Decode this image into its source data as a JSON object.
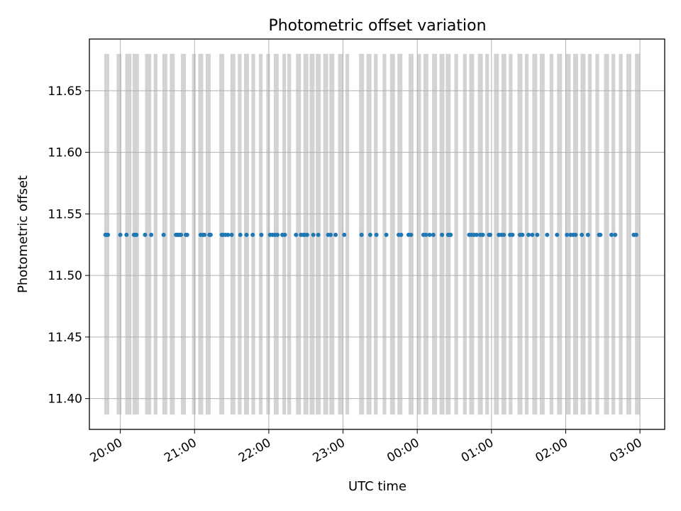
{
  "chart_data": {
    "type": "scatter",
    "title": "Photometric offset variation",
    "xlabel": "UTC time",
    "ylabel": "Photometric offset",
    "x_axis": {
      "type": "time",
      "start": "19:35",
      "end": "27:20",
      "ticks": [
        {
          "value": "20:00",
          "label": "20:00"
        },
        {
          "value": "21:00",
          "label": "21:00"
        },
        {
          "value": "22:00",
          "label": "22:00"
        },
        {
          "value": "23:00",
          "label": "23:00"
        },
        {
          "value": "24:00",
          "label": "00:00"
        },
        {
          "value": "25:00",
          "label": "01:00"
        },
        {
          "value": "26:00",
          "label": "02:00"
        },
        {
          "value": "27:00",
          "label": "03:00"
        }
      ]
    },
    "y_axis": {
      "range": [
        11.375,
        11.692
      ],
      "ticks": [
        "11.40",
        "11.45",
        "11.50",
        "11.55",
        "11.60",
        "11.65"
      ]
    },
    "grid": true,
    "band_range": [
      11.387,
      11.68
    ],
    "band_color": "#d3d3d3",
    "point_color": "#1f77b4",
    "point_value": 11.533,
    "bands": [
      [
        "19:47",
        "19:51"
      ],
      [
        "19:57",
        "20:01"
      ],
      [
        "20:04",
        "20:09"
      ],
      [
        "20:10",
        "20:15"
      ],
      [
        "20:20",
        "20:25"
      ],
      [
        "20:27",
        "20:30"
      ],
      [
        "20:34",
        "20:38"
      ],
      [
        "20:40",
        "20:44"
      ],
      [
        "20:49",
        "20:53"
      ],
      [
        "20:58",
        "21:01"
      ],
      [
        "21:03",
        "21:07"
      ],
      [
        "21:09",
        "21:13"
      ],
      [
        "21:20",
        "21:24"
      ],
      [
        "21:29",
        "21:33"
      ],
      [
        "21:35",
        "21:38"
      ],
      [
        "21:40",
        "21:44"
      ],
      [
        "21:46",
        "21:49"
      ],
      [
        "21:52",
        "21:55"
      ],
      [
        "21:58",
        "22:01"
      ],
      [
        "22:04",
        "22:08"
      ],
      [
        "22:11",
        "22:14"
      ],
      [
        "22:15",
        "22:18"
      ],
      [
        "22:22",
        "22:26"
      ],
      [
        "22:28",
        "22:32"
      ],
      [
        "22:33",
        "22:37"
      ],
      [
        "22:38",
        "22:42"
      ],
      [
        "22:44",
        "22:48"
      ],
      [
        "22:49",
        "22:53"
      ],
      [
        "22:56",
        "23:00"
      ],
      [
        "23:02",
        "23:05"
      ],
      [
        "23:13",
        "23:17"
      ],
      [
        "23:19",
        "23:23"
      ],
      [
        "23:25",
        "23:28"
      ],
      [
        "23:32",
        "23:35"
      ],
      [
        "23:38",
        "23:42"
      ],
      [
        "23:44",
        "23:48"
      ],
      [
        "23:53",
        "23:57"
      ],
      [
        "24:00",
        "24:03"
      ],
      [
        "24:05",
        "24:09"
      ],
      [
        "24:12",
        "24:16"
      ],
      [
        "24:18",
        "24:22"
      ],
      [
        "24:23",
        "24:27"
      ],
      [
        "24:30",
        "24:33"
      ],
      [
        "24:37",
        "24:40"
      ],
      [
        "24:42",
        "24:46"
      ],
      [
        "24:49",
        "24:53"
      ],
      [
        "24:55",
        "24:58"
      ],
      [
        "25:02",
        "25:06"
      ],
      [
        "25:08",
        "25:12"
      ],
      [
        "25:14",
        "25:17"
      ],
      [
        "25:21",
        "25:25"
      ],
      [
        "25:27",
        "25:30"
      ],
      [
        "25:33",
        "25:37"
      ],
      [
        "25:39",
        "25:43"
      ],
      [
        "25:47",
        "25:50"
      ],
      [
        "25:53",
        "25:57"
      ],
      [
        "26:00",
        "26:04"
      ],
      [
        "26:06",
        "26:10"
      ],
      [
        "26:12",
        "26:16"
      ],
      [
        "26:18",
        "26:21"
      ],
      [
        "26:24",
        "26:27"
      ],
      [
        "26:31",
        "26:35"
      ],
      [
        "26:37",
        "26:40"
      ],
      [
        "26:43",
        "26:46"
      ],
      [
        "26:49",
        "26:53"
      ],
      [
        "26:56",
        "27:00"
      ]
    ],
    "x": [
      "19:48",
      "19:49",
      "19:50",
      "20:00",
      "20:05",
      "20:11",
      "20:12",
      "20:13",
      "20:20",
      "20:25",
      "20:35",
      "20:45",
      "20:46",
      "20:47",
      "20:48",
      "20:49",
      "20:53",
      "20:54",
      "21:05",
      "21:07",
      "21:08",
      "21:12",
      "21:13",
      "21:22",
      "21:23",
      "21:25",
      "21:27",
      "21:30",
      "21:37",
      "21:42",
      "21:47",
      "21:54",
      "22:01",
      "22:03",
      "22:05",
      "22:07",
      "22:11",
      "22:13",
      "22:22",
      "22:26",
      "22:28",
      "22:29",
      "22:31",
      "22:36",
      "22:40",
      "22:48",
      "22:50",
      "22:54",
      "23:01",
      "23:15",
      "23:22",
      "23:27",
      "23:35",
      "23:45",
      "23:47",
      "23:53",
      "23:55",
      "24:05",
      "24:07",
      "24:10",
      "24:13",
      "24:20",
      "24:25",
      "24:26",
      "24:27",
      "24:42",
      "24:44",
      "24:46",
      "24:48",
      "24:51",
      "24:53",
      "24:58",
      "24:59",
      "25:06",
      "25:08",
      "25:10",
      "25:15",
      "25:17",
      "25:23",
      "25:25",
      "25:30",
      "25:33",
      "25:37",
      "25:45",
      "25:53",
      "26:01",
      "26:04",
      "26:06",
      "26:08",
      "26:13",
      "26:18",
      "26:27",
      "26:28",
      "26:37",
      "26:40",
      "26:55",
      "26:57"
    ]
  }
}
